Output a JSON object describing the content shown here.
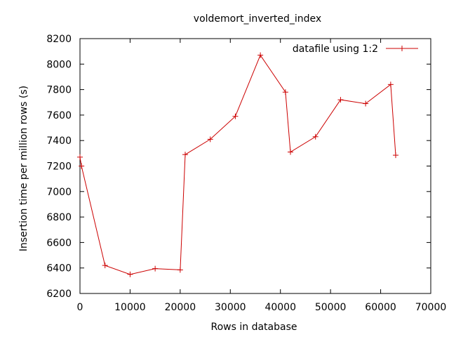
{
  "chart_data": {
    "type": "line",
    "title": "voldemort_inverted_index",
    "xlabel": "Rows in database",
    "ylabel": "Insertion time per million rows (s)",
    "xlim": [
      0,
      70000
    ],
    "ylim": [
      6200,
      8200
    ],
    "xticks": [
      0,
      10000,
      20000,
      30000,
      40000,
      50000,
      60000,
      70000
    ],
    "yticks": [
      6200,
      6400,
      6600,
      6800,
      7000,
      7200,
      7400,
      7600,
      7800,
      8000,
      8200
    ],
    "grid": false,
    "legend_position": "top-right",
    "series": [
      {
        "name": "datafile using 1:2",
        "color": "#cc0000",
        "marker": "plus",
        "x": [
          0,
          300,
          5000,
          10000,
          15000,
          20000,
          21000,
          26000,
          31000,
          36000,
          41000,
          42000,
          47000,
          52000,
          57000,
          62000,
          63000
        ],
        "y": [
          7270,
          7200,
          6420,
          6350,
          6395,
          6385,
          7290,
          7410,
          7590,
          8070,
          7780,
          7310,
          7430,
          7720,
          7690,
          7840,
          7285
        ]
      }
    ]
  }
}
